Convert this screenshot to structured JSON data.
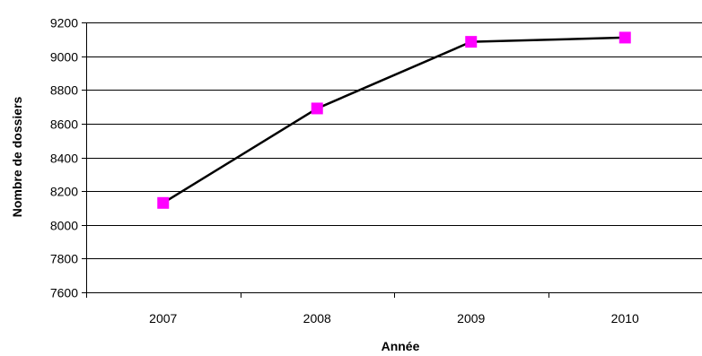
{
  "chart_data": {
    "type": "line",
    "title": "",
    "xlabel": "Année",
    "ylabel": "Nombre de dossiers",
    "x": [
      "2007",
      "2008",
      "2009",
      "2010"
    ],
    "series": [
      {
        "values": [
          8130,
          8690,
          9085,
          9110
        ],
        "line_color": "#000000",
        "marker": "square",
        "marker_color": "#ff00ff"
      }
    ],
    "ylim": [
      7600,
      9200
    ],
    "yticks": [
      7600,
      7800,
      8000,
      8200,
      8400,
      8600,
      8800,
      9000,
      9200
    ],
    "grid": "horizontal",
    "legend": "none"
  }
}
